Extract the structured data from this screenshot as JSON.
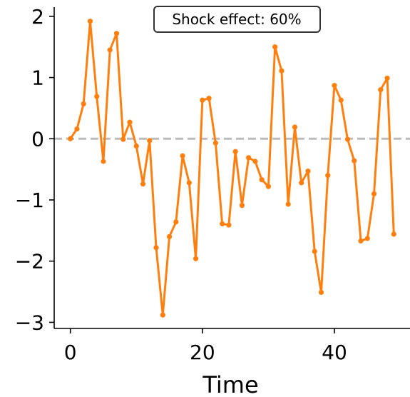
{
  "chart_data": {
    "type": "line",
    "title": "",
    "xlabel": "Time",
    "ylabel": "",
    "xlim": [
      -2.45,
      51.45
    ],
    "ylim": [
      -3.1,
      2.15
    ],
    "xticks": [
      0,
      20,
      40
    ],
    "xtick_labels": [
      "0",
      "20",
      "40"
    ],
    "yticks": [
      2,
      1,
      0,
      -1,
      -2,
      -3
    ],
    "ytick_labels": [
      "2",
      "1",
      "0",
      "−1",
      "−2",
      "−3"
    ],
    "grid": false,
    "legend": "none",
    "annotation": "Shock effect: 60%",
    "reference_line": {
      "y": 0,
      "style": "dashed",
      "color": "#bbbbbb"
    },
    "series": [
      {
        "color": "#ff7f0e",
        "x": [
          0,
          1,
          2,
          3,
          4,
          5,
          6,
          7,
          8,
          9,
          10,
          11,
          12,
          13,
          14,
          15,
          16,
          17,
          18,
          19,
          20,
          21,
          22,
          23,
          24,
          25,
          26,
          27,
          28,
          29,
          30,
          31,
          32,
          33,
          34,
          35,
          36,
          37,
          38,
          39,
          40,
          41,
          42,
          43,
          44,
          45,
          46,
          47,
          48,
          49
        ],
        "values": [
          0.0,
          0.16,
          0.57,
          1.92,
          0.69,
          -0.37,
          1.45,
          1.72,
          -0.01,
          0.27,
          -0.12,
          -0.74,
          -0.03,
          -1.78,
          -2.88,
          -1.6,
          -1.36,
          -0.28,
          -0.72,
          -1.96,
          0.63,
          0.66,
          -0.07,
          -1.39,
          -1.41,
          -0.21,
          -1.09,
          -0.31,
          -0.37,
          -0.67,
          -0.78,
          1.5,
          1.11,
          -1.07,
          0.19,
          -0.72,
          -0.53,
          -1.84,
          -2.51,
          -0.6,
          0.87,
          0.63,
          -0.01,
          -0.36,
          -1.67,
          -1.63,
          -0.9,
          0.8,
          0.99,
          -1.56
        ]
      }
    ]
  }
}
